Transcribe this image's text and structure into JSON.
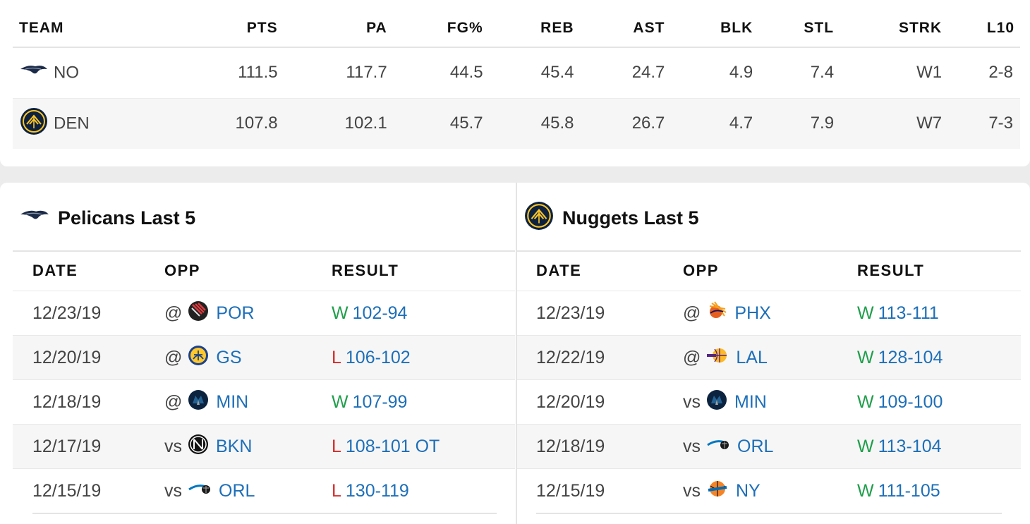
{
  "stats": {
    "headers": {
      "team": "TEAM",
      "pts": "PTS",
      "pa": "PA",
      "fg": "FG%",
      "reb": "REB",
      "ast": "AST",
      "blk": "BLK",
      "stl": "STL",
      "strk": "STRK",
      "l10": "L10"
    },
    "rows": [
      {
        "team": "NO",
        "pts": "111.5",
        "pa": "117.7",
        "fg": "44.5",
        "reb": "45.4",
        "ast": "24.7",
        "blk": "4.9",
        "stl": "7.4",
        "strk": "W1",
        "l10": "2-8"
      },
      {
        "team": "DEN",
        "pts": "107.8",
        "pa": "102.1",
        "fg": "45.7",
        "reb": "45.8",
        "ast": "26.7",
        "blk": "4.7",
        "stl": "7.9",
        "strk": "W7",
        "l10": "7-3"
      }
    ]
  },
  "pelicans": {
    "title": "Pelicans Last 5",
    "headers": {
      "date": "DATE",
      "opp": "OPP",
      "result": "RESULT"
    },
    "games": [
      {
        "date": "12/23/19",
        "loc": "@",
        "opp": "POR",
        "wl": "W",
        "score": "102-94"
      },
      {
        "date": "12/20/19",
        "loc": "@",
        "opp": "GS",
        "wl": "L",
        "score": "106-102"
      },
      {
        "date": "12/18/19",
        "loc": "@",
        "opp": "MIN",
        "wl": "W",
        "score": "107-99"
      },
      {
        "date": "12/17/19",
        "loc": "vs",
        "opp": "BKN",
        "wl": "L",
        "score": "108-101 OT"
      },
      {
        "date": "12/15/19",
        "loc": "vs",
        "opp": "ORL",
        "wl": "L",
        "score": "130-119"
      }
    ]
  },
  "nuggets": {
    "title": "Nuggets Last 5",
    "headers": {
      "date": "DATE",
      "opp": "OPP",
      "result": "RESULT"
    },
    "games": [
      {
        "date": "12/23/19",
        "loc": "@",
        "opp": "PHX",
        "wl": "W",
        "score": "113-111"
      },
      {
        "date": "12/22/19",
        "loc": "@",
        "opp": "LAL",
        "wl": "W",
        "score": "128-104"
      },
      {
        "date": "12/20/19",
        "loc": "vs",
        "opp": "MIN",
        "wl": "W",
        "score": "109-100"
      },
      {
        "date": "12/18/19",
        "loc": "vs",
        "opp": "ORL",
        "wl": "W",
        "score": "113-104"
      },
      {
        "date": "12/15/19",
        "loc": "vs",
        "opp": "NY",
        "wl": "W",
        "score": "111-105"
      }
    ]
  },
  "colors": {
    "win": "#1f9e4b",
    "loss": "#d62b2b",
    "link": "#1d6fb8"
  },
  "icons": {
    "NO": "pelicans-logo-icon",
    "DEN": "nuggets-logo-icon",
    "POR": "blazers-logo-icon",
    "GS": "warriors-logo-icon",
    "MIN": "timberwolves-logo-icon",
    "BKN": "nets-logo-icon",
    "ORL": "magic-logo-icon",
    "PHX": "suns-logo-icon",
    "LAL": "lakers-logo-icon",
    "NY": "knicks-logo-icon"
  }
}
